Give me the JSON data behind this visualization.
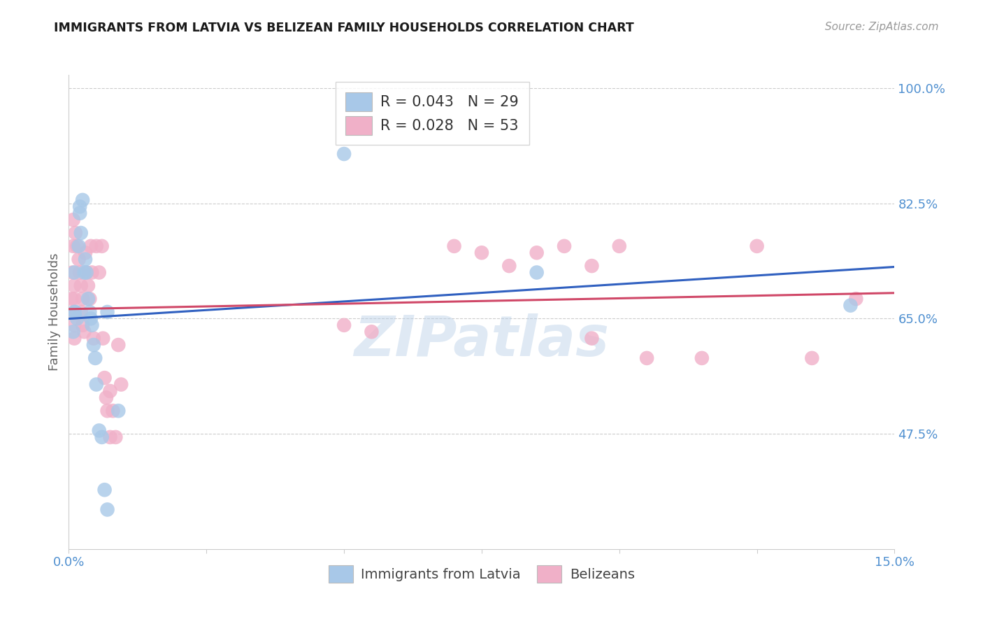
{
  "title": "IMMIGRANTS FROM LATVIA VS BELIZEAN FAMILY HOUSEHOLDS CORRELATION CHART",
  "source": "Source: ZipAtlas.com",
  "ylabel": "Family Households",
  "xlabel_label_blue": "Immigrants from Latvia",
  "xlabel_label_pink": "Belizeans",
  "x_min": 0.0,
  "x_max": 0.15,
  "y_min": 0.3,
  "y_max": 1.02,
  "y_ticks": [
    0.475,
    0.65,
    0.825,
    1.0
  ],
  "y_tick_labels": [
    "47.5%",
    "65.0%",
    "82.5%",
    "100.0%"
  ],
  "x_tick_positions": [
    0.0,
    0.025,
    0.05,
    0.075,
    0.1,
    0.125,
    0.15
  ],
  "x_tick_labels": [
    "0.0%",
    "",
    "",
    "",
    "",
    "",
    "15.0%"
  ],
  "legend_line1": "R = 0.043   N = 29",
  "legend_line2": "R = 0.028   N = 53",
  "blue_color": "#a8c8e8",
  "pink_color": "#f0b0c8",
  "blue_line_color": "#3060c0",
  "pink_line_color": "#d04868",
  "blue_scatter": [
    [
      0.0008,
      0.63
    ],
    [
      0.001,
      0.66
    ],
    [
      0.001,
      0.72
    ],
    [
      0.0012,
      0.66
    ],
    [
      0.0015,
      0.65
    ],
    [
      0.0018,
      0.76
    ],
    [
      0.002,
      0.81
    ],
    [
      0.002,
      0.82
    ],
    [
      0.0022,
      0.78
    ],
    [
      0.0025,
      0.83
    ],
    [
      0.0028,
      0.72
    ],
    [
      0.003,
      0.74
    ],
    [
      0.0032,
      0.72
    ],
    [
      0.0035,
      0.68
    ],
    [
      0.0038,
      0.66
    ],
    [
      0.004,
      0.65
    ],
    [
      0.0042,
      0.64
    ],
    [
      0.0045,
      0.61
    ],
    [
      0.0048,
      0.59
    ],
    [
      0.005,
      0.55
    ],
    [
      0.0055,
      0.48
    ],
    [
      0.006,
      0.47
    ],
    [
      0.0065,
      0.39
    ],
    [
      0.007,
      0.66
    ],
    [
      0.007,
      0.36
    ],
    [
      0.009,
      0.51
    ],
    [
      0.05,
      0.9
    ],
    [
      0.085,
      0.72
    ],
    [
      0.142,
      0.67
    ]
  ],
  "pink_scatter": [
    [
      0.0005,
      0.68
    ],
    [
      0.0007,
      0.72
    ],
    [
      0.0008,
      0.76
    ],
    [
      0.0008,
      0.8
    ],
    [
      0.001,
      0.66
    ],
    [
      0.001,
      0.7
    ],
    [
      0.001,
      0.64
    ],
    [
      0.001,
      0.62
    ],
    [
      0.001,
      0.68
    ],
    [
      0.0012,
      0.78
    ],
    [
      0.0015,
      0.76
    ],
    [
      0.0018,
      0.74
    ],
    [
      0.002,
      0.72
    ],
    [
      0.0022,
      0.7
    ],
    [
      0.0022,
      0.66
    ],
    [
      0.0025,
      0.68
    ],
    [
      0.0025,
      0.64
    ],
    [
      0.0028,
      0.63
    ],
    [
      0.003,
      0.75
    ],
    [
      0.0032,
      0.72
    ],
    [
      0.0035,
      0.7
    ],
    [
      0.0038,
      0.68
    ],
    [
      0.004,
      0.76
    ],
    [
      0.0042,
      0.72
    ],
    [
      0.0045,
      0.62
    ],
    [
      0.005,
      0.76
    ],
    [
      0.0055,
      0.72
    ],
    [
      0.006,
      0.76
    ],
    [
      0.0062,
      0.62
    ],
    [
      0.0065,
      0.56
    ],
    [
      0.0068,
      0.53
    ],
    [
      0.007,
      0.51
    ],
    [
      0.0075,
      0.54
    ],
    [
      0.0075,
      0.47
    ],
    [
      0.008,
      0.51
    ],
    [
      0.0085,
      0.47
    ],
    [
      0.009,
      0.61
    ],
    [
      0.0095,
      0.55
    ],
    [
      0.05,
      0.64
    ],
    [
      0.055,
      0.63
    ],
    [
      0.07,
      0.76
    ],
    [
      0.075,
      0.75
    ],
    [
      0.08,
      0.73
    ],
    [
      0.085,
      0.75
    ],
    [
      0.09,
      0.76
    ],
    [
      0.095,
      0.73
    ],
    [
      0.095,
      0.62
    ],
    [
      0.1,
      0.76
    ],
    [
      0.105,
      0.59
    ],
    [
      0.115,
      0.59
    ],
    [
      0.125,
      0.76
    ],
    [
      0.135,
      0.59
    ],
    [
      0.143,
      0.68
    ]
  ],
  "watermark": "ZIPatlas",
  "background_color": "#ffffff",
  "grid_color": "#cccccc",
  "title_color": "#1a1a1a",
  "axis_label_color": "#666666",
  "right_tick_color": "#5090d0",
  "bottom_tick_color": "#5090d0"
}
